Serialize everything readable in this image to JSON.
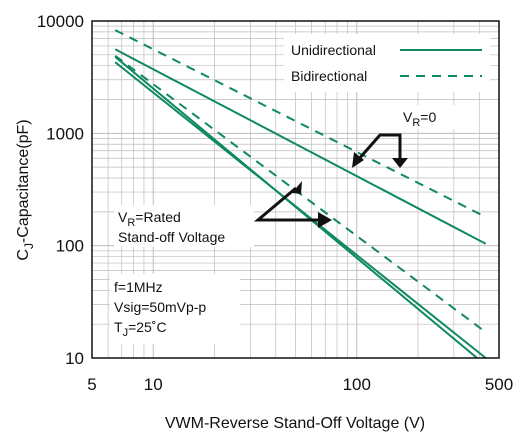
{
  "chart_data": {
    "type": "line",
    "xscale": "log",
    "yscale": "log",
    "xlim": [
      5,
      500
    ],
    "ylim": [
      10,
      10000
    ],
    "grid": true,
    "xlabel": "VWM-Reverse Stand-Off Voltage (V)",
    "ylabel": {
      "main": "C",
      "sub": "J",
      "rest": "-Capacitance(pF)"
    },
    "x_ticks": [
      {
        "value": 5,
        "label": "5"
      },
      {
        "value": 10,
        "label": "10"
      },
      {
        "value": 100,
        "label": "100"
      },
      {
        "value": 500,
        "label": "500"
      }
    ],
    "y_ticks": [
      {
        "value": 10,
        "label": "10"
      },
      {
        "value": 100,
        "label": "100"
      },
      {
        "value": 1000,
        "label": "1000"
      },
      {
        "value": 10000,
        "label": "10000"
      }
    ],
    "legend": {
      "position": "top-right",
      "entries": [
        {
          "label": "Unidirectional",
          "style": "solid"
        },
        {
          "label": "Bidirectional",
          "style": "dashed"
        }
      ]
    },
    "series": [
      {
        "legend": "Unidirectional",
        "condition": "VR=0",
        "style": "solid",
        "x": [
          6.5,
          430
        ],
        "y": [
          5600,
          104
        ]
      },
      {
        "legend": "Bidirectional",
        "condition": "VR=0",
        "style": "dashed",
        "x": [
          6.5,
          430
        ],
        "y": [
          8300,
          180
        ]
      },
      {
        "legend": "Unidirectional",
        "condition": "VR=Rated",
        "style": "solid",
        "x": [
          6.5,
          430
        ],
        "y": [
          4300,
          10
        ]
      },
      {
        "legend": "Unidirectional",
        "condition": "VR=Rated",
        "style": "solid",
        "x": [
          6.5,
          390
        ],
        "y": [
          4800,
          10
        ]
      },
      {
        "legend": "Bidirectional",
        "condition": "VR=Rated",
        "style": "dashed",
        "x": [
          6.5,
          430
        ],
        "y": [
          4900,
          17
        ]
      }
    ],
    "annotations": {
      "vr_zero": {
        "main": "V",
        "sub": "R",
        "rest": "=0"
      },
      "vr_rated": {
        "main": "V",
        "sub": "R",
        "rest": "=Rated",
        "line2": "Stand-off Voltage"
      },
      "conditions": [
        {
          "main": "f=1MHz",
          "sub": "",
          "rest": ""
        },
        {
          "main": "Vsig=50mVp-p",
          "sub": "",
          "rest": ""
        },
        {
          "main": "T",
          "sub": "J",
          "rest": "=25˚C"
        }
      ]
    },
    "colors": {
      "series": "#0e8a5c",
      "grid": "#bdbdbd",
      "axis": "#111111"
    }
  }
}
